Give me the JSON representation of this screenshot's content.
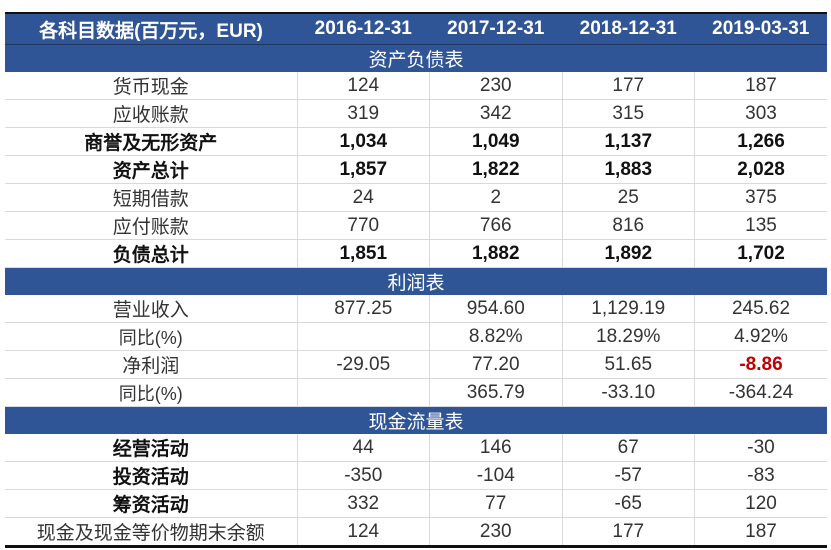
{
  "table": {
    "header": [
      "各科目数据(百万元，EUR)",
      "2016-12-31",
      "2017-12-31",
      "2018-12-31",
      "2019-03-31"
    ],
    "sections": [
      {
        "title": "资产负债表",
        "rows": [
          {
            "label": "货币现金",
            "values": [
              "124",
              "230",
              "177",
              "187"
            ],
            "bold": false
          },
          {
            "label": "应收账款",
            "values": [
              "319",
              "342",
              "315",
              "303"
            ],
            "bold": false
          },
          {
            "label": "商誉及无形资产",
            "values": [
              "1,034",
              "1,049",
              "1,137",
              "1,266"
            ],
            "bold": true
          },
          {
            "label": "资产总计",
            "values": [
              "1,857",
              "1,822",
              "1,883",
              "2,028"
            ],
            "bold": true
          },
          {
            "label": "短期借款",
            "values": [
              "24",
              "2",
              "25",
              "375"
            ],
            "bold": false
          },
          {
            "label": "应付账款",
            "values": [
              "770",
              "766",
              "816",
              "135"
            ],
            "bold": false
          },
          {
            "label": "负债总计",
            "values": [
              "1,851",
              "1,882",
              "1,892",
              "1,702"
            ],
            "bold": true
          }
        ]
      },
      {
        "title": "利润表",
        "rows": [
          {
            "label": "营业收入",
            "values": [
              "877.25",
              "954.60",
              "1,129.19",
              "245.62"
            ],
            "bold": false
          },
          {
            "label": "同比(%)",
            "values": [
              "",
              "8.82%",
              "18.29%",
              "4.92%"
            ],
            "bold": false
          },
          {
            "label": "净利润",
            "values": [
              "-29.05",
              "77.20",
              "51.65",
              "-8.86"
            ],
            "bold": false,
            "highlight_col": 3,
            "highlight_color": "#c00000"
          },
          {
            "label": "同比(%)",
            "values": [
              "",
              "365.79",
              "-33.10",
              "-364.24"
            ],
            "bold": false
          }
        ]
      },
      {
        "title": "现金流量表",
        "rows": [
          {
            "label": "经营活动",
            "values": [
              "44",
              "146",
              "67",
              "-30"
            ],
            "bold": true
          },
          {
            "label": "投资活动",
            "values": [
              "-350",
              "-104",
              "-57",
              "-83"
            ],
            "bold": true
          },
          {
            "label": "筹资活动",
            "values": [
              "332",
              "77",
              "-65",
              "120"
            ],
            "bold": true
          },
          {
            "label": "现金及现金等价物期末余额",
            "values": [
              "124",
              "230",
              "177",
              "187"
            ],
            "bold": false
          }
        ]
      }
    ],
    "colors": {
      "header_bg": "#2f5597",
      "header_text": "#ffffff",
      "negative_highlight": "#c00000"
    }
  }
}
